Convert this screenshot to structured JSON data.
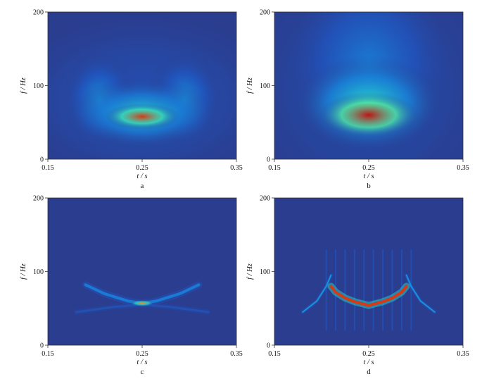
{
  "chart_data": [
    {
      "panel": "a",
      "type": "heatmap",
      "xlabel": "t / s",
      "ylabel": "f / Hz",
      "xlim": [
        0.15,
        0.35
      ],
      "ylim": [
        0,
        200
      ],
      "xticks": [
        0.15,
        0.25,
        0.35
      ],
      "yticks": [
        0,
        100,
        200
      ],
      "colormap": "jet",
      "background_color": "#2a3d8f",
      "features": [
        {
          "kind": "blob",
          "t": 0.25,
          "f": 58,
          "sigma_t": 0.018,
          "sigma_f": 8,
          "level": 0.95
        },
        {
          "kind": "blob",
          "t": 0.25,
          "f": 62,
          "sigma_t": 0.036,
          "sigma_f": 22,
          "level": 0.45
        },
        {
          "kind": "blob",
          "t": 0.205,
          "f": 80,
          "sigma_t": 0.018,
          "sigma_f": 30,
          "level": 0.3
        },
        {
          "kind": "blob",
          "t": 0.295,
          "f": 80,
          "sigma_t": 0.018,
          "sigma_f": 30,
          "level": 0.3
        },
        {
          "kind": "blob",
          "t": 0.25,
          "f": 80,
          "sigma_t": 0.075,
          "sigma_f": 60,
          "level": 0.12
        }
      ]
    },
    {
      "panel": "b",
      "type": "heatmap",
      "xlabel": "t / s",
      "ylabel": "f / Hz",
      "xlim": [
        0.15,
        0.35
      ],
      "ylim": [
        0,
        200
      ],
      "xticks": [
        0.15,
        0.25,
        0.35
      ],
      "yticks": [
        0,
        100,
        200
      ],
      "colormap": "jet",
      "background_color": "#2a3d8f",
      "features": [
        {
          "kind": "blob",
          "t": 0.25,
          "f": 60,
          "sigma_t": 0.024,
          "sigma_f": 14,
          "level": 1.0
        },
        {
          "kind": "blob",
          "t": 0.25,
          "f": 75,
          "sigma_t": 0.036,
          "sigma_f": 30,
          "level": 0.5
        },
        {
          "kind": "blob",
          "t": 0.25,
          "f": 130,
          "sigma_t": 0.042,
          "sigma_f": 60,
          "level": 0.25
        },
        {
          "kind": "blob",
          "t": 0.25,
          "f": 100,
          "sigma_t": 0.07,
          "sigma_f": 90,
          "level": 0.1
        }
      ]
    },
    {
      "panel": "c",
      "type": "heatmap",
      "xlabel": "t / s",
      "ylabel": "f / Hz",
      "xlim": [
        0.15,
        0.35
      ],
      "ylim": [
        0,
        200
      ],
      "xticks": [
        0.15,
        0.25,
        0.35
      ],
      "yticks": [
        0,
        100,
        200
      ],
      "colormap": "jet",
      "background_color": "#2a3d8f",
      "features": [
        {
          "kind": "blob",
          "t": 0.25,
          "f": 57,
          "sigma_t": 0.006,
          "sigma_f": 2,
          "level": 0.85
        },
        {
          "kind": "curve",
          "points": [
            [
              0.19,
              82
            ],
            [
              0.21,
              70
            ],
            [
              0.235,
              60
            ],
            [
              0.25,
              57
            ],
            [
              0.265,
              60
            ],
            [
              0.29,
              70
            ],
            [
              0.31,
              82
            ]
          ],
          "level": 0.25,
          "width": 4
        },
        {
          "kind": "curve",
          "points": [
            [
              0.18,
              45
            ],
            [
              0.22,
              52
            ],
            [
              0.25,
              55
            ],
            [
              0.28,
              52
            ],
            [
              0.32,
              45
            ]
          ],
          "level": 0.12,
          "width": 3
        }
      ]
    },
    {
      "panel": "d",
      "type": "heatmap",
      "xlabel": "t / s",
      "ylabel": "f / Hz",
      "xlim": [
        0.15,
        0.35
      ],
      "ylim": [
        0,
        200
      ],
      "xticks": [
        0.15,
        0.25,
        0.35
      ],
      "yticks": [
        0,
        100,
        200
      ],
      "colormap": "jet",
      "background_color": "#2a3d8f",
      "features": [
        {
          "kind": "curve",
          "points": [
            [
              0.21,
              80
            ],
            [
              0.215,
              72
            ],
            [
              0.225,
              64
            ],
            [
              0.235,
              59
            ],
            [
              0.25,
              54
            ],
            [
              0.265,
              59
            ],
            [
              0.275,
              64
            ],
            [
              0.285,
              72
            ],
            [
              0.29,
              80
            ]
          ],
          "level": 0.95,
          "width": 4
        },
        {
          "kind": "curve",
          "points": [
            [
              0.18,
              45
            ],
            [
              0.195,
              60
            ],
            [
              0.205,
              80
            ],
            [
              0.21,
              95
            ]
          ],
          "level": 0.3,
          "width": 2
        },
        {
          "kind": "curve",
          "points": [
            [
              0.32,
              45
            ],
            [
              0.305,
              60
            ],
            [
              0.295,
              80
            ],
            [
              0.29,
              95
            ]
          ],
          "level": 0.3,
          "width": 2
        },
        {
          "kind": "stripes",
          "t_values": [
            0.205,
            0.215,
            0.225,
            0.235,
            0.245,
            0.255,
            0.265,
            0.275,
            0.285,
            0.295
          ],
          "f_range": [
            20,
            130
          ],
          "level": 0.15
        }
      ]
    }
  ]
}
